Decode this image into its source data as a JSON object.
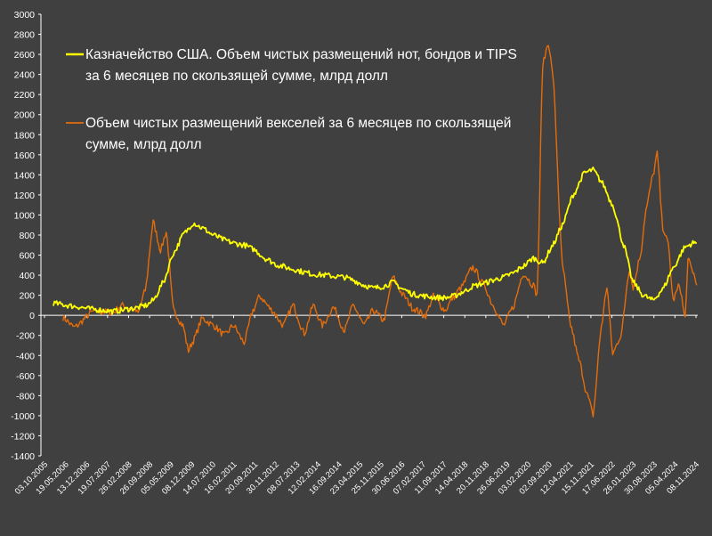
{
  "chart_data": {
    "type": "line",
    "title": "",
    "xlabel": "",
    "ylabel": "",
    "ylim": [
      -1400,
      3000
    ],
    "yticks": [
      -1400,
      -1200,
      -1000,
      -800,
      -600,
      -400,
      -200,
      0,
      200,
      400,
      600,
      800,
      1000,
      1200,
      1400,
      1600,
      1800,
      2000,
      2200,
      2400,
      2600,
      2800,
      3000
    ],
    "xlim": [
      "2005-10-03",
      "2024-12-31"
    ],
    "xtick_labels": [
      "03.10.2005",
      "19.05.2006",
      "13.12.2006",
      "19.07.2007",
      "26.02.2008",
      "26.09.2008",
      "05.05.2009",
      "08.12.2009",
      "14.07.2010",
      "16.02.2011",
      "20.09.2011",
      "30.11.2012",
      "08.07.2013",
      "12.02.2014",
      "16.09.2014",
      "23.04.2015",
      "25.11.2015",
      "30.06.2016",
      "07.02.2017",
      "11.09.2017",
      "14.04.2018",
      "20.11.2018",
      "26.06.2019",
      "03.02.2020",
      "02.09.2020",
      "12.04.2021",
      "15.11.2021",
      "17.06.2022",
      "26.01.2023",
      "30.08.2023",
      "05.04.2024",
      "08.11.2024"
    ],
    "grid": false,
    "legend_position": "top-left",
    "series": [
      {
        "name": "Казначейство США. Объем чистых размещений нот, бондов и TIPS за 6 месяцев по скользящей сумме, млрд долл",
        "name_lines": [
          "Казначейство США. Объем чистых размещений нот, бондов и TIPS",
          "за 6 месяцев по скользящей сумме, млрд долл"
        ],
        "color": "#ffff00",
        "points": [
          [
            "2005-10-03",
            120
          ],
          [
            "2006-05-19",
            90
          ],
          [
            "2006-12-13",
            60
          ],
          [
            "2007-07-19",
            40
          ],
          [
            "2008-02-26",
            70
          ],
          [
            "2008-07-15",
            100
          ],
          [
            "2008-09-26",
            150
          ],
          [
            "2009-01-15",
            330
          ],
          [
            "2009-05-05",
            620
          ],
          [
            "2009-09-01",
            820
          ],
          [
            "2009-12-08",
            920
          ],
          [
            "2010-03-15",
            870
          ],
          [
            "2010-07-14",
            800
          ],
          [
            "2010-11-15",
            750
          ],
          [
            "2011-02-16",
            720
          ],
          [
            "2011-06-15",
            700
          ],
          [
            "2011-09-20",
            660
          ],
          [
            "2012-02-15",
            560
          ],
          [
            "2012-06-15",
            500
          ],
          [
            "2012-11-30",
            460
          ],
          [
            "2013-04-01",
            430
          ],
          [
            "2013-07-08",
            410
          ],
          [
            "2013-11-15",
            400
          ],
          [
            "2014-02-12",
            390
          ],
          [
            "2014-06-15",
            380
          ],
          [
            "2014-09-16",
            350
          ],
          [
            "2015-01-15",
            300
          ],
          [
            "2015-04-23",
            270
          ],
          [
            "2015-08-15",
            290
          ],
          [
            "2015-11-25",
            330
          ],
          [
            "2016-03-15",
            260
          ],
          [
            "2016-06-30",
            210
          ],
          [
            "2016-11-15",
            190
          ],
          [
            "2017-02-07",
            180
          ],
          [
            "2017-06-15",
            175
          ],
          [
            "2017-09-11",
            190
          ],
          [
            "2018-01-15",
            240
          ],
          [
            "2018-04-14",
            290
          ],
          [
            "2018-08-15",
            320
          ],
          [
            "2018-11-20",
            350
          ],
          [
            "2019-03-15",
            380
          ],
          [
            "2019-06-26",
            420
          ],
          [
            "2019-10-15",
            490
          ],
          [
            "2020-02-03",
            570
          ],
          [
            "2020-05-15",
            520
          ],
          [
            "2020-09-02",
            700
          ],
          [
            "2020-12-15",
            900
          ],
          [
            "2021-04-12",
            1200
          ],
          [
            "2021-08-15",
            1420
          ],
          [
            "2021-11-15",
            1450
          ],
          [
            "2022-02-15",
            1330
          ],
          [
            "2022-06-17",
            1100
          ],
          [
            "2022-10-15",
            700
          ],
          [
            "2023-01-26",
            330
          ],
          [
            "2023-05-15",
            200
          ],
          [
            "2023-08-30",
            150
          ],
          [
            "2023-12-15",
            260
          ],
          [
            "2024-04-05",
            470
          ],
          [
            "2024-08-15",
            680
          ],
          [
            "2024-11-08",
            720
          ],
          [
            "2024-12-20",
            720
          ]
        ]
      },
      {
        "name": "Объем чистых размещений векселей за 6 месяцев по скользящей сумме, млрд долл",
        "name_lines": [
          "Объем чистых размещений векселей за 6 месяцев по скользящей",
          "сумме, млрд долл"
        ],
        "color": "#e46c0a",
        "points": [
          [
            "2006-01-15",
            -20
          ],
          [
            "2006-05-19",
            -120
          ],
          [
            "2006-12-13",
            40
          ],
          [
            "2007-07-19",
            30
          ],
          [
            "2007-10-15",
            100
          ],
          [
            "2008-02-26",
            60
          ],
          [
            "2008-04-15",
            20
          ],
          [
            "2008-07-01",
            250
          ],
          [
            "2008-09-26",
            930
          ],
          [
            "2008-12-15",
            650
          ],
          [
            "2009-02-15",
            830
          ],
          [
            "2009-05-05",
            50
          ],
          [
            "2009-08-15",
            -100
          ],
          [
            "2009-10-15",
            -350
          ],
          [
            "2009-12-08",
            -250
          ],
          [
            "2010-03-15",
            -30
          ],
          [
            "2010-07-14",
            -100
          ],
          [
            "2010-11-15",
            -200
          ],
          [
            "2011-02-16",
            -100
          ],
          [
            "2011-06-15",
            -270
          ],
          [
            "2011-09-20",
            50
          ],
          [
            "2011-12-01",
            190
          ],
          [
            "2012-04-15",
            50
          ],
          [
            "2012-08-15",
            -100
          ],
          [
            "2012-11-30",
            100
          ],
          [
            "2013-04-01",
            -180
          ],
          [
            "2013-07-08",
            100
          ],
          [
            "2013-10-15",
            -100
          ],
          [
            "2014-02-12",
            80
          ],
          [
            "2014-06-15",
            -150
          ],
          [
            "2014-09-16",
            100
          ],
          [
            "2015-01-15",
            -100
          ],
          [
            "2015-04-23",
            50
          ],
          [
            "2015-08-15",
            -50
          ],
          [
            "2015-11-25",
            380
          ],
          [
            "2016-03-15",
            200
          ],
          [
            "2016-06-30",
            70
          ],
          [
            "2016-11-15",
            0
          ],
          [
            "2017-02-07",
            190
          ],
          [
            "2017-06-15",
            50
          ],
          [
            "2017-09-11",
            180
          ],
          [
            "2017-12-01",
            270
          ],
          [
            "2018-04-14",
            480
          ],
          [
            "2018-08-15",
            300
          ],
          [
            "2018-11-20",
            100
          ],
          [
            "2019-03-15",
            -100
          ],
          [
            "2019-06-26",
            80
          ],
          [
            "2019-10-15",
            420
          ],
          [
            "2020-02-03",
            300
          ],
          [
            "2020-03-15",
            200
          ],
          [
            "2020-05-15",
            2500
          ],
          [
            "2020-07-15",
            2720
          ],
          [
            "2020-09-02",
            2400
          ],
          [
            "2020-12-15",
            500
          ],
          [
            "2021-03-15",
            -100
          ],
          [
            "2021-06-15",
            -450
          ],
          [
            "2021-09-15",
            -800
          ],
          [
            "2021-11-15",
            -990
          ],
          [
            "2022-02-15",
            -100
          ],
          [
            "2022-04-15",
            290
          ],
          [
            "2022-06-17",
            -380
          ],
          [
            "2022-09-15",
            -200
          ],
          [
            "2022-12-15",
            460
          ],
          [
            "2023-01-26",
            280
          ],
          [
            "2023-04-15",
            600
          ],
          [
            "2023-06-15",
            1050
          ],
          [
            "2023-08-30",
            1390
          ],
          [
            "2023-10-15",
            1610
          ],
          [
            "2023-12-15",
            880
          ],
          [
            "2024-02-15",
            700
          ],
          [
            "2024-04-05",
            150
          ],
          [
            "2024-06-15",
            300
          ],
          [
            "2024-08-15",
            -30
          ],
          [
            "2024-09-15",
            550
          ],
          [
            "2024-11-08",
            440
          ],
          [
            "2024-12-20",
            300
          ]
        ]
      }
    ]
  }
}
